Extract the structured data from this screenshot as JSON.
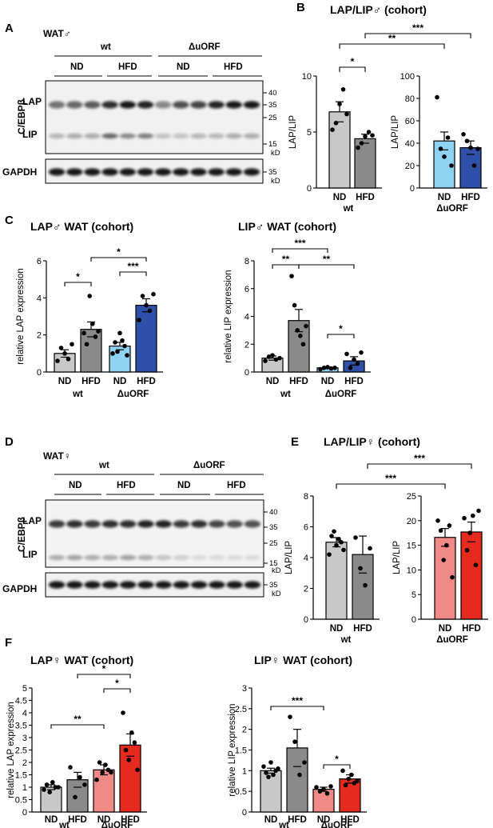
{
  "colors": {
    "wt_nd": "#c8c8c8",
    "wt_hfd": "#8a8a8a",
    "male_duorf_nd": "#8fd3f2",
    "male_duorf_hfd": "#2f4fa8",
    "female_duorf_nd": "#f08a86",
    "female_duorf_hfd": "#e52a20"
  },
  "panels": {
    "A": {
      "label": "A",
      "tissue": "WAT♂",
      "wt": "wt",
      "duorf": "ΔuORF",
      "nd1": "ND",
      "hfd1": "HFD",
      "nd2": "ND",
      "hfd2": "HFD",
      "protein": "C/EBPβ",
      "lap": "LAP",
      "lip": "LIP",
      "gapdh": "GAPDH",
      "mw": [
        "40",
        "35",
        "25",
        "15",
        "kD"
      ],
      "mw2": [
        "35",
        "kD"
      ]
    },
    "B": {
      "label": "B",
      "title": "LAP/LIP♂ (cohort)"
    },
    "C": {
      "label": "C",
      "title_left": "LAP♂ WAT (cohort)",
      "title_right": "LIP♂ WAT (cohort)"
    },
    "D": {
      "label": "D",
      "tissue": "WAT♀",
      "wt": "wt",
      "duorf": "ΔuORF",
      "nd1": "ND",
      "hfd1": "HFD",
      "nd2": "ND",
      "hfd2": "HFD",
      "protein": "C/EBPβ",
      "lap": "LAP",
      "lip": "LIP",
      "gapdh": "GAPDH",
      "mw": [
        "40",
        "35",
        "25",
        "15",
        "kD"
      ],
      "mw2": [
        "35",
        "kD"
      ]
    },
    "E": {
      "label": "E",
      "title": "LAP/LIP♀ (cohort)"
    },
    "F": {
      "label": "F",
      "title_left": "LAP♀ WAT (cohort)",
      "title_right": "LIP♀ WAT (cohort)"
    }
  },
  "chart_data": [
    {
      "id": "B1",
      "type": "bar",
      "panel": "B",
      "ylabel": "LAP/LIP",
      "ylim": [
        0,
        10
      ],
      "yticks": [
        "0",
        "5",
        "10"
      ],
      "categories": [
        "ND",
        "HFD"
      ],
      "group_label": "wt",
      "colors": [
        "#c8c8c8",
        "#8a8a8a"
      ],
      "values": [
        6.8,
        4.4
      ],
      "errors": [
        0.9,
        0.4
      ],
      "points": [
        [
          5.2,
          5.8,
          7.5,
          8.8,
          6.6
        ],
        [
          3.6,
          4.0,
          4.6,
          5.0,
          4.7
        ]
      ],
      "significance": [
        {
          "from": 0,
          "to": 1,
          "label": "*"
        }
      ]
    },
    {
      "id": "B2",
      "type": "bar",
      "panel": "B",
      "ylabel": "LAP/LIP",
      "ylim": [
        0,
        100
      ],
      "yticks": [
        "0",
        "20",
        "40",
        "60",
        "80",
        "100"
      ],
      "categories": [
        "ND",
        "HFD"
      ],
      "group_label": "ΔuORF",
      "colors": [
        "#8fd3f2",
        "#2f4fa8"
      ],
      "values": [
        42,
        36
      ],
      "errors": [
        8,
        6
      ],
      "points": [
        [
          81,
          35,
          28,
          45,
          20
        ],
        [
          48,
          42,
          36,
          20,
          35
        ]
      ],
      "significance": [
        {
          "from": "B1:0",
          "to": 0,
          "label": "**"
        },
        {
          "from": "B1:1",
          "to": 1,
          "label": "***"
        }
      ]
    },
    {
      "id": "C1",
      "type": "bar",
      "panel": "C",
      "ylabel": "relative LAP expression",
      "ylim": [
        0,
        6
      ],
      "yticks": [
        "0",
        "2",
        "4",
        "6"
      ],
      "categories": [
        "ND",
        "HFD",
        "ND",
        "HFD"
      ],
      "groups": [
        "wt",
        "ΔuORF"
      ],
      "colors": [
        "#c8c8c8",
        "#8a8a8a",
        "#8fd3f2",
        "#2f4fa8"
      ],
      "values": [
        1.0,
        2.3,
        1.4,
        3.6
      ],
      "errors": [
        0.2,
        0.4,
        0.2,
        0.35
      ],
      "points": [
        [
          0.6,
          1.3,
          1.0,
          0.7,
          1.5
        ],
        [
          2.1,
          1.5,
          4.1,
          2.6,
          1.9,
          2.2
        ],
        [
          1.0,
          1.6,
          1.1,
          2.1,
          1.7,
          1.4,
          0.9
        ],
        [
          2.8,
          4.1,
          3.6,
          3.3,
          4.2
        ]
      ],
      "significance": [
        {
          "from": 0,
          "to": 1,
          "label": "*"
        },
        {
          "from": 2,
          "to": 3,
          "label": "***"
        },
        {
          "from": 1,
          "to": 3,
          "label": "*"
        }
      ]
    },
    {
      "id": "C2",
      "type": "bar",
      "panel": "C",
      "ylabel": "relative LIP expression",
      "ylim": [
        0,
        8
      ],
      "yticks": [
        "0",
        "2",
        "4",
        "6",
        "8"
      ],
      "categories": [
        "ND",
        "HFD",
        "ND",
        "HFD"
      ],
      "groups": [
        "wt",
        "ΔuORF"
      ],
      "colors": [
        "#c8c8c8",
        "#8a8a8a",
        "#8fd3f2",
        "#2f4fa8"
      ],
      "values": [
        1.0,
        3.7,
        0.3,
        0.8
      ],
      "errors": [
        0.15,
        0.8,
        0.05,
        0.3
      ],
      "points": [
        [
          0.8,
          1.1,
          1.2,
          0.9,
          1.0
        ],
        [
          6.9,
          4.8,
          3.0,
          2.6,
          2.0,
          3.3
        ],
        [
          0.2,
          0.3,
          0.35,
          0.25,
          0.3
        ],
        [
          1.3,
          0.3,
          0.9,
          0.6,
          1.4
        ]
      ],
      "significance": [
        {
          "from": 0,
          "to": 1,
          "label": "**"
        },
        {
          "from": 1,
          "to": 3,
          "label": "**"
        },
        {
          "from": 0,
          "to": 2,
          "label": "***"
        },
        {
          "from": 2,
          "to": 3,
          "label": "*"
        }
      ]
    },
    {
      "id": "E1",
      "type": "bar",
      "panel": "E",
      "ylabel": "LAP/LIP",
      "ylim": [
        0,
        8
      ],
      "yticks": [
        "0",
        "2",
        "4",
        "6",
        "8"
      ],
      "categories": [
        "ND",
        "HFD"
      ],
      "group_label": "wt",
      "colors": [
        "#c8c8c8",
        "#8a8a8a"
      ],
      "values": [
        5.0,
        4.2
      ],
      "errors": [
        0.3,
        1.2
      ],
      "points": [
        [
          4.2,
          5.4,
          5.7,
          4.8,
          5.2,
          5.0,
          4.5
        ],
        [
          5.3,
          3.3,
          2.2,
          4.6
        ]
      ],
      "significance": []
    },
    {
      "id": "E2",
      "type": "bar",
      "panel": "E",
      "ylabel": "LAP/LIP",
      "ylim": [
        0,
        25
      ],
      "yticks": [
        "0",
        "5",
        "10",
        "15",
        "20",
        "25"
      ],
      "categories": [
        "ND",
        "HFD"
      ],
      "group_label": "ΔuORF",
      "colors": [
        "#f08a86",
        "#e52a20"
      ],
      "values": [
        16.6,
        17.7
      ],
      "errors": [
        1.8,
        2.0
      ],
      "points": [
        [
          20,
          18,
          12,
          15,
          19,
          8.5
        ],
        [
          20.5,
          14,
          17.5,
          21,
          11,
          22
        ]
      ],
      "significance": [
        {
          "from": "E1:0",
          "to": 0,
          "label": "***"
        },
        {
          "from": "E1:1",
          "to": 1,
          "label": "***"
        }
      ]
    },
    {
      "id": "F1",
      "type": "bar",
      "panel": "F",
      "ylabel": "relative LAP expression",
      "ylim": [
        0,
        5
      ],
      "yticks": [
        "0",
        "0.5",
        "1",
        "1.5",
        "2",
        "2.5",
        "3",
        "3.5",
        "4",
        "4.5",
        "5"
      ],
      "categories": [
        "ND",
        "HFD",
        "ND",
        "HFD"
      ],
      "groups": [
        "wt",
        "ΔuORF"
      ],
      "colors": [
        "#c8c8c8",
        "#8a8a8a",
        "#f08a86",
        "#e52a20"
      ],
      "values": [
        1.0,
        1.3,
        1.7,
        2.7
      ],
      "errors": [
        0.1,
        0.3,
        0.2,
        0.45
      ],
      "points": [
        [
          0.9,
          1.1,
          0.8,
          1.2,
          1.0,
          1.0
        ],
        [
          1.8,
          0.6,
          1.4,
          1.1
        ],
        [
          1.3,
          2.0,
          1.6,
          1.9,
          1.7,
          1.6
        ],
        [
          4.0,
          2.5,
          2.1,
          3.2,
          2.8,
          1.7
        ]
      ],
      "significance": [
        {
          "from": 0,
          "to": 2,
          "label": "**"
        },
        {
          "from": 2,
          "to": 3,
          "label": "*"
        },
        {
          "from": 1,
          "to": 3,
          "label": "*"
        }
      ]
    },
    {
      "id": "F2",
      "type": "bar",
      "panel": "F",
      "ylabel": "relative LIP expression",
      "ylim": [
        0,
        3
      ],
      "yticks": [
        "0",
        "0.5",
        "1",
        "1.5",
        "2",
        "2.5",
        "3"
      ],
      "categories": [
        "ND",
        "HFD",
        "ND",
        "HFD"
      ],
      "groups": [
        "wt",
        "ΔuORF"
      ],
      "colors": [
        "#c8c8c8",
        "#8a8a8a",
        "#f08a86",
        "#e52a20"
      ],
      "values": [
        1.0,
        1.55,
        0.55,
        0.8
      ],
      "errors": [
        0.06,
        0.45,
        0.05,
        0.1
      ],
      "points": [
        [
          1.1,
          0.95,
          0.85,
          1.2,
          0.9,
          1.0,
          1.05
        ],
        [
          2.3,
          1.7,
          0.9,
          1.2
        ],
        [
          0.6,
          0.5,
          0.55,
          0.45,
          0.62
        ],
        [
          1.0,
          0.65,
          0.8,
          0.9,
          0.7,
          0.75
        ]
      ],
      "significance": [
        {
          "from": 0,
          "to": 2,
          "label": "***"
        },
        {
          "from": 2,
          "to": 3,
          "label": "*"
        }
      ]
    }
  ]
}
